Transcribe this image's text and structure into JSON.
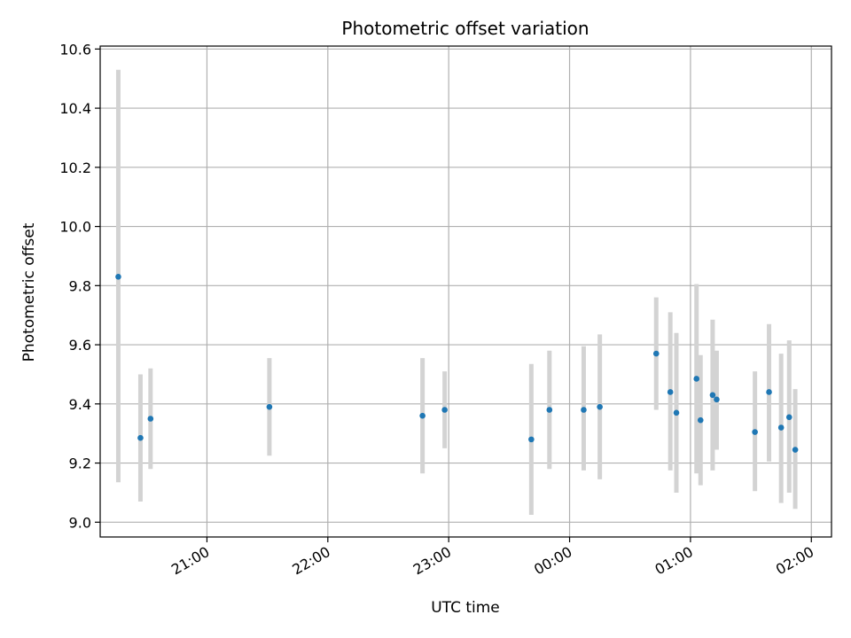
{
  "chart_data": {
    "type": "scatter",
    "title": "Photometric offset variation",
    "xlabel": "UTC time",
    "ylabel": "Photometric offset",
    "x_axis_type": "time",
    "x_range": [
      "20:07",
      "02:10"
    ],
    "x_ticks": [
      "21:00",
      "22:00",
      "23:00",
      "00:00",
      "01:00",
      "02:00"
    ],
    "ylim": [
      8.95,
      10.61
    ],
    "y_ticks": [
      9.0,
      9.2,
      9.4,
      9.6,
      9.8,
      10.0,
      10.2,
      10.4,
      10.6
    ],
    "y_tick_labels": [
      "9.0",
      "9.2",
      "9.4",
      "9.6",
      "9.8",
      "10.0",
      "10.2",
      "10.4",
      "10.6"
    ],
    "grid": true,
    "colors": {
      "marker": "#1f77b4",
      "errorbar": "#d3d3d3",
      "grid": "#b0b0b0"
    },
    "points": [
      {
        "x": "20:16",
        "y": 9.83,
        "low": 9.135,
        "high": 10.53
      },
      {
        "x": "20:27",
        "y": 9.285,
        "low": 9.07,
        "high": 9.5
      },
      {
        "x": "20:32",
        "y": 9.35,
        "low": 9.18,
        "high": 9.52
      },
      {
        "x": "21:31",
        "y": 9.39,
        "low": 9.225,
        "high": 9.555
      },
      {
        "x": "22:47",
        "y": 9.36,
        "low": 9.165,
        "high": 9.555
      },
      {
        "x": "22:58",
        "y": 9.38,
        "low": 9.25,
        "high": 9.51
      },
      {
        "x": "23:41",
        "y": 9.28,
        "low": 9.025,
        "high": 9.535
      },
      {
        "x": "23:50",
        "y": 9.38,
        "low": 9.18,
        "high": 9.58
      },
      {
        "x": "00:07",
        "y": 9.38,
        "low": 9.175,
        "high": 9.595
      },
      {
        "x": "00:15",
        "y": 9.39,
        "low": 9.145,
        "high": 9.635
      },
      {
        "x": "00:43",
        "y": 9.57,
        "low": 9.38,
        "high": 9.76
      },
      {
        "x": "00:50",
        "y": 9.44,
        "low": 9.175,
        "high": 9.71
      },
      {
        "x": "00:53",
        "y": 9.37,
        "low": 9.1,
        "high": 9.64
      },
      {
        "x": "01:03",
        "y": 9.485,
        "low": 9.165,
        "high": 9.805
      },
      {
        "x": "01:05",
        "y": 9.345,
        "low": 9.125,
        "high": 9.565
      },
      {
        "x": "01:11",
        "y": 9.43,
        "low": 9.175,
        "high": 9.685
      },
      {
        "x": "01:13",
        "y": 9.415,
        "low": 9.245,
        "high": 9.58
      },
      {
        "x": "01:32",
        "y": 9.305,
        "low": 9.105,
        "high": 9.51
      },
      {
        "x": "01:39",
        "y": 9.44,
        "low": 9.205,
        "high": 9.67
      },
      {
        "x": "01:45",
        "y": 9.32,
        "low": 9.065,
        "high": 9.57
      },
      {
        "x": "01:49",
        "y": 9.355,
        "low": 9.1,
        "high": 9.615
      },
      {
        "x": "01:52",
        "y": 9.245,
        "low": 9.045,
        "high": 9.45
      }
    ]
  }
}
